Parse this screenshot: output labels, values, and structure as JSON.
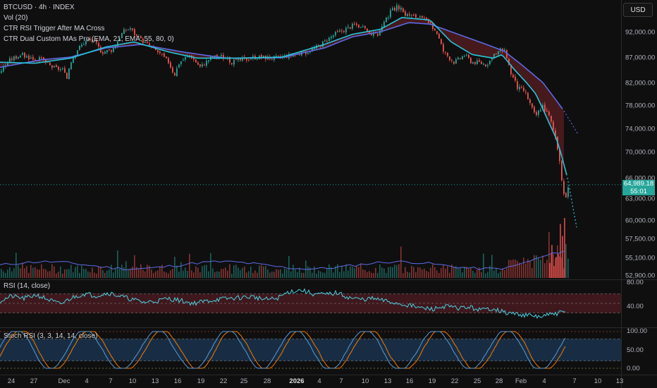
{
  "currency_label": "USD",
  "legends": {
    "title": "BTCUSD · 4h · INDEX",
    "vol": "Vol (20)",
    "rsi_trigger": "CTR RSI Trigger After MA Cross",
    "dual_ma": "CTR Dual Custom MAs Pro (EMA, 21, EMA, 55, 80, 0)",
    "rsi": "RSI (14, close)",
    "stoch": "Stoch RSI (3, 3, 14, 14, close)"
  },
  "last_price": {
    "value": "64,989.18",
    "countdown": "55:01",
    "price": 64989.18
  },
  "colors": {
    "up": "#26a69a",
    "down": "#ef5350",
    "ema_fast": "#26c6da",
    "ema_slow": "#5b6be6",
    "cloud": "#5a1e22",
    "rsi": "#4dd0e1",
    "rsi_band": "#4a1a20",
    "stoch_k": "#5b9bd5",
    "stoch_d": "#f57c00",
    "stoch_band": "#1a3550",
    "vol_ma": "#5b6be6"
  },
  "chart_data": [
    {
      "type": "candlestick",
      "name": "BTCUSD price",
      "y_axis_ticks": [
        92000,
        87000,
        82000,
        78000,
        74000,
        70000,
        66000,
        63000,
        60000,
        57500,
        55100,
        52900
      ],
      "y_axis_labels": [
        "92,000.00",
        "87,000.00",
        "82,000.00",
        "78,000.00",
        "74,000.00",
        "70,000.00",
        "66,000.00",
        "63,000.00",
        "60,000.00",
        "57,500.00",
        "55,100.00",
        "52,900.00"
      ],
      "x_ticks": [
        "24",
        "27",
        "Dec",
        "4",
        "7",
        "10",
        "13",
        "16",
        "19",
        "22",
        "25",
        "28",
        "2026",
        "4",
        "7",
        "10",
        "13",
        "16",
        "19",
        "22",
        "25",
        "28",
        "Feb",
        "4",
        "7",
        "10",
        "13"
      ],
      "path": [
        [
          0,
          84000
        ],
        [
          15,
          86500
        ],
        [
          30,
          87500
        ],
        [
          45,
          86800
        ],
        [
          60,
          86500
        ],
        [
          75,
          85000
        ],
        [
          90,
          84500
        ],
        [
          95,
          82500
        ],
        [
          100,
          86000
        ],
        [
          110,
          88500
        ],
        [
          125,
          90500
        ],
        [
          135,
          90000
        ],
        [
          145,
          88000
        ],
        [
          160,
          88500
        ],
        [
          175,
          92000
        ],
        [
          185,
          92800
        ],
        [
          195,
          91000
        ],
        [
          210,
          89500
        ],
        [
          225,
          88000
        ],
        [
          240,
          86000
        ],
        [
          248,
          83500
        ],
        [
          255,
          86000
        ],
        [
          270,
          87500
        ],
        [
          285,
          85000
        ],
        [
          300,
          87000
        ],
        [
          315,
          87200
        ],
        [
          330,
          86000
        ],
        [
          345,
          86500
        ],
        [
          360,
          87000
        ],
        [
          375,
          87000
        ],
        [
          390,
          86800
        ],
        [
          405,
          87200
        ],
        [
          420,
          87500
        ],
        [
          435,
          88000
        ],
        [
          450,
          89000
        ],
        [
          465,
          90500
        ],
        [
          475,
          91500
        ],
        [
          490,
          92500
        ],
        [
          505,
          93500
        ],
        [
          520,
          92200
        ],
        [
          535,
          91200
        ],
        [
          545,
          93500
        ],
        [
          555,
          96000
        ],
        [
          565,
          97000
        ],
        [
          575,
          95500
        ],
        [
          590,
          95000
        ],
        [
          600,
          94500
        ],
        [
          610,
          93500
        ],
        [
          620,
          92000
        ],
        [
          630,
          88000
        ],
        [
          645,
          86000
        ],
        [
          660,
          87500
        ],
        [
          670,
          86000
        ],
        [
          680,
          86000
        ],
        [
          690,
          85500
        ],
        [
          700,
          87000
        ],
        [
          710,
          88500
        ],
        [
          718,
          88000
        ],
        [
          725,
          84000
        ],
        [
          735,
          81000
        ],
        [
          745,
          80500
        ],
        [
          750,
          79000
        ],
        [
          760,
          76000
        ],
        [
          770,
          78000
        ],
        [
          780,
          76000
        ],
        [
          790,
          72000
        ],
        [
          797,
          66000
        ],
        [
          803,
          62500
        ],
        [
          807,
          64989
        ]
      ],
      "ema21_path": [
        [
          0,
          86000
        ],
        [
          50,
          85800
        ],
        [
          100,
          86800
        ],
        [
          150,
          89000
        ],
        [
          190,
          90000
        ],
        [
          240,
          88000
        ],
        [
          280,
          86800
        ],
        [
          340,
          86800
        ],
        [
          400,
          87000
        ],
        [
          460,
          89500
        ],
        [
          500,
          91500
        ],
        [
          540,
          92500
        ],
        [
          570,
          94800
        ],
        [
          610,
          94300
        ],
        [
          640,
          90000
        ],
        [
          670,
          87500
        ],
        [
          700,
          86800
        ],
        [
          712,
          87500
        ],
        [
          730,
          84500
        ],
        [
          760,
          80000
        ],
        [
          790,
          72000
        ],
        [
          805,
          66000
        ]
      ],
      "ema55_path": [
        [
          0,
          85000
        ],
        [
          60,
          86500
        ],
        [
          100,
          87000
        ],
        [
          150,
          88800
        ],
        [
          200,
          89500
        ],
        [
          260,
          88000
        ],
        [
          320,
          86800
        ],
        [
          400,
          86900
        ],
        [
          460,
          88800
        ],
        [
          500,
          91000
        ],
        [
          540,
          92000
        ],
        [
          580,
          93800
        ],
        [
          610,
          93500
        ],
        [
          650,
          91500
        ],
        [
          690,
          89500
        ],
        [
          715,
          88200
        ],
        [
          740,
          85500
        ],
        [
          770,
          82000
        ],
        [
          800,
          77000
        ]
      ],
      "projection_fast": [
        [
          805,
          66000
        ],
        [
          818,
          59000
        ]
      ],
      "projection_slow": [
        [
          800,
          77000
        ],
        [
          820,
          73000
        ]
      ]
    },
    {
      "type": "bar",
      "name": "Volume",
      "indicator": "Vol (20)",
      "spike_values_relative": [
        0.25,
        0.55,
        0.2,
        0.35,
        0.4,
        0.9,
        0.7,
        1.0
      ]
    },
    {
      "type": "line",
      "name": "RSI (14, close)",
      "y_axis_labels": [
        "80.00",
        "40.00"
      ],
      "ylim": [
        0,
        100
      ],
      "levels": [
        70,
        50,
        30
      ],
      "sample_values": [
        55,
        65,
        60,
        68,
        58,
        48,
        62,
        70,
        66,
        72,
        65,
        58,
        52,
        55,
        60,
        56,
        50,
        54,
        58,
        60,
        62,
        64,
        58,
        60,
        74,
        78,
        70,
        68,
        72,
        62,
        58,
        60,
        55,
        50,
        46,
        40,
        38,
        44,
        40,
        42,
        36,
        40,
        30,
        28,
        24,
        22,
        28,
        32
      ]
    },
    {
      "type": "line",
      "name": "Stoch RSI (3, 3, 14, 14, close)",
      "y_axis_labels": [
        "100.00",
        "50.00",
        "0.00"
      ],
      "ylim": [
        0,
        100
      ],
      "levels": [
        80,
        20
      ]
    }
  ]
}
